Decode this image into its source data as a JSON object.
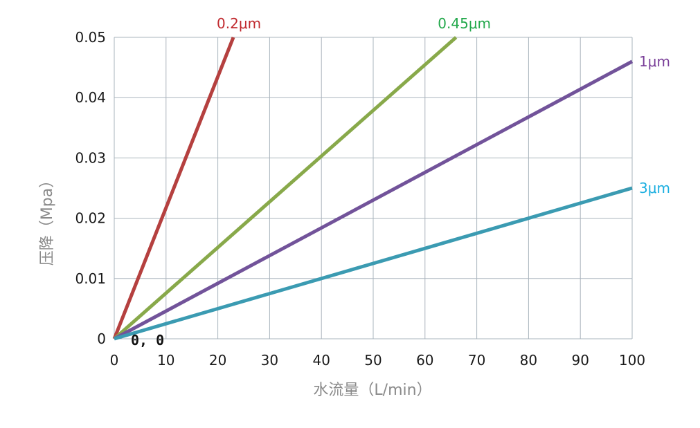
{
  "chart_data": {
    "type": "line",
    "title": "",
    "xlabel": "水流量（L/min）",
    "ylabel": "压降（Mpa）",
    "xlim": [
      0,
      100
    ],
    "ylim": [
      0,
      0.05
    ],
    "x_ticks": [
      0,
      10,
      20,
      30,
      40,
      50,
      60,
      70,
      80,
      90,
      100
    ],
    "y_ticks": [
      0,
      0.01,
      0.02,
      0.03,
      0.04,
      0.05
    ],
    "x_tick_labels": [
      "0",
      "10",
      "20",
      "30",
      "40",
      "50",
      "60",
      "70",
      "80",
      "90",
      "100"
    ],
    "y_tick_labels": [
      "0",
      "0.01",
      "0.02",
      "0.03",
      "0.04",
      "0.05"
    ],
    "grid": true,
    "annotation": "0, 0",
    "series": [
      {
        "name": "0.2μm",
        "color": "#b5403f",
        "label_color": "#c0282d",
        "points": [
          [
            0,
            0
          ],
          [
            23,
            0.05
          ]
        ]
      },
      {
        "name": "0.45μm",
        "color": "#88a94a",
        "label_color": "#22a84b",
        "points": [
          [
            0,
            0
          ],
          [
            66,
            0.05
          ]
        ]
      },
      {
        "name": "1μm",
        "color": "#72539a",
        "label_color": "#7a3f99",
        "points": [
          [
            0,
            0
          ],
          [
            100,
            0.046
          ]
        ]
      },
      {
        "name": "3μm",
        "color": "#3b9bb2",
        "label_color": "#1aaee0",
        "points": [
          [
            0,
            0
          ],
          [
            100,
            0.025
          ]
        ]
      }
    ]
  }
}
